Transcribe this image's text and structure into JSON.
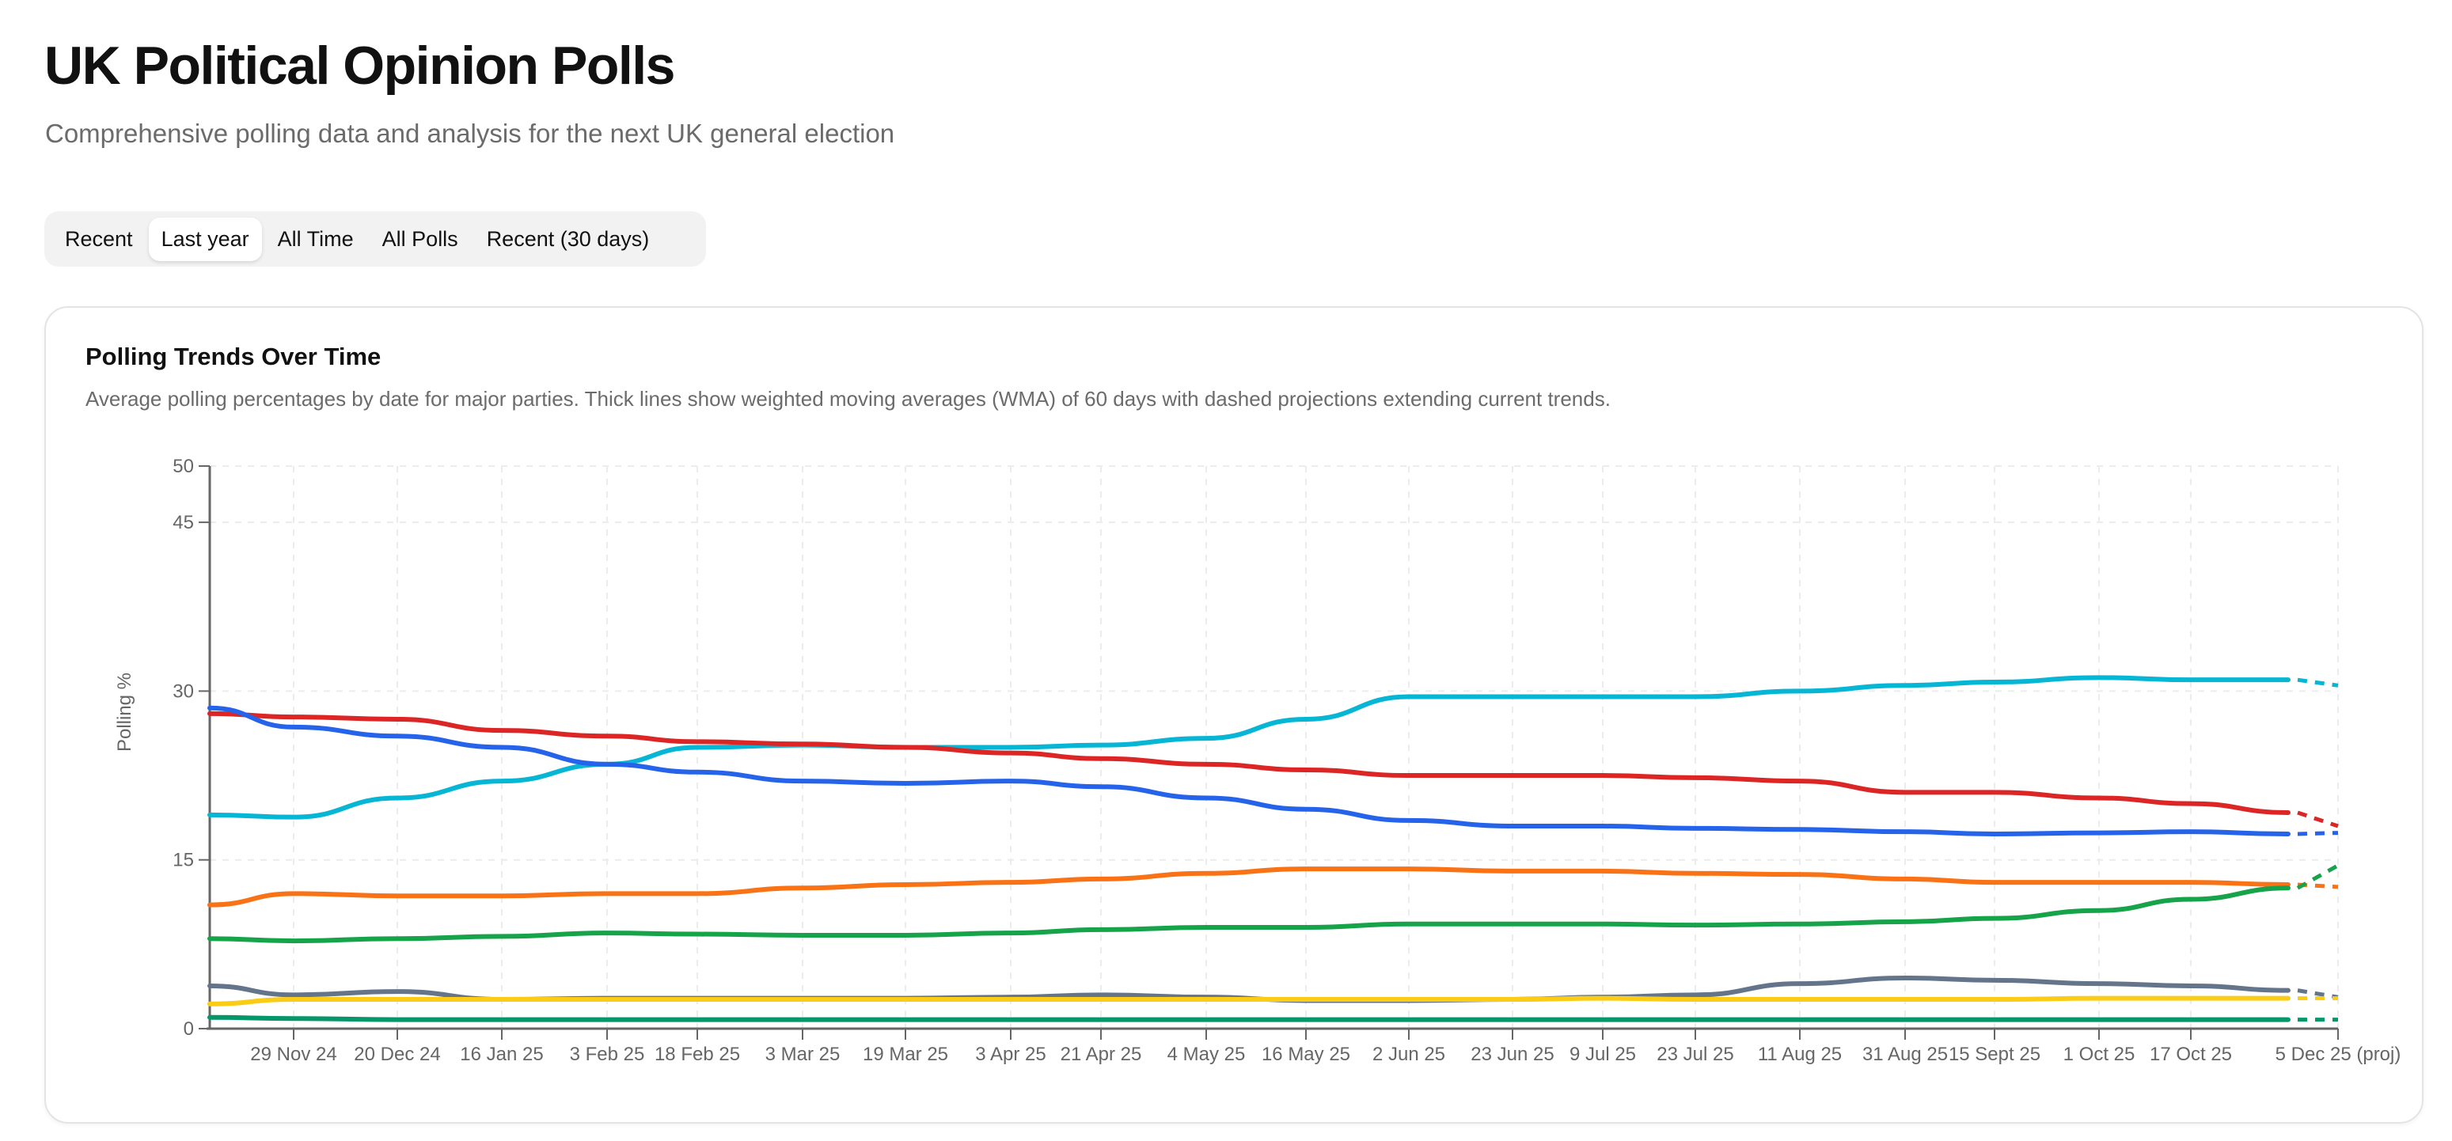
{
  "header": {
    "title": "UK Political Opinion Polls",
    "subtitle": "Comprehensive polling data and analysis for the next UK general election"
  },
  "tabs": [
    {
      "label": "Recent",
      "active": false
    },
    {
      "label": "Last year",
      "active": true
    },
    {
      "label": "All Time",
      "active": false
    },
    {
      "label": "All Polls",
      "active": false
    },
    {
      "label": "Recent (30 days)",
      "active": false
    }
  ],
  "card": {
    "title": "Polling Trends Over Time",
    "description": "Average polling percentages by date for major parties. Thick lines show weighted moving averages (WMA) of 60 days with dashed projections extending current trends."
  },
  "chart_data": {
    "type": "line",
    "title": "Polling Trends Over Time",
    "xlabel": "",
    "ylabel": "Polling %",
    "ylim": [
      0,
      50
    ],
    "yticks": [
      0,
      15,
      30,
      45,
      50
    ],
    "grid": true,
    "x": [
      "",
      "29 Nov 24",
      "20 Dec 24",
      "16 Jan 25",
      "3 Feb 25",
      "18 Feb 25",
      "3 Mar 25",
      "19 Mar 25",
      "3 Apr 25",
      "21 Apr 25",
      "4 May 25",
      "16 May 25",
      "2 Jun 25",
      "23 Jun 25",
      "9 Jul 25",
      "23 Jul 25",
      "11 Aug 25",
      "31 Aug 25",
      "15 Sept 25",
      "1 Oct 25",
      "17 Oct 25",
      "",
      "5 Dec 25 (proj)"
    ],
    "projection_index": 21,
    "series": [
      {
        "color": "#06b6d4",
        "values": [
          19,
          18.8,
          20.5,
          22,
          23.5,
          25,
          25.2,
          25,
          25,
          25.2,
          25.8,
          27.5,
          29.5,
          29.5,
          29.5,
          29.5,
          30,
          30.5,
          30.8,
          31.2,
          31,
          31,
          30.5
        ]
      },
      {
        "color": "#dc2626",
        "values": [
          28,
          27.7,
          27.5,
          26.5,
          26,
          25.5,
          25.3,
          25,
          24.5,
          24,
          23.5,
          23,
          22.5,
          22.5,
          22.5,
          22.3,
          22,
          21,
          21,
          20.5,
          20,
          19.2,
          18
        ]
      },
      {
        "color": "#2563eb",
        "values": [
          28.5,
          26.8,
          26,
          25,
          23.5,
          22.8,
          22,
          21.8,
          22,
          21.5,
          20.5,
          19.5,
          18.5,
          18,
          18,
          17.8,
          17.7,
          17.5,
          17.3,
          17.4,
          17.5,
          17.3,
          17.4
        ]
      },
      {
        "color": "#f97316",
        "values": [
          11,
          12,
          11.8,
          11.8,
          12,
          12,
          12.5,
          12.8,
          13,
          13.3,
          13.8,
          14.2,
          14.2,
          14,
          14,
          13.8,
          13.7,
          13.3,
          13,
          13,
          13,
          12.8,
          12.6
        ]
      },
      {
        "color": "#16a34a",
        "values": [
          8,
          7.8,
          8,
          8.2,
          8.5,
          8.4,
          8.3,
          8.3,
          8.5,
          8.8,
          9,
          9,
          9.3,
          9.3,
          9.3,
          9.2,
          9.3,
          9.5,
          9.8,
          10.5,
          11.5,
          12.5,
          14.5
        ]
      },
      {
        "color": "#64748b",
        "values": [
          3.8,
          3,
          3.3,
          2.6,
          2.7,
          2.7,
          2.7,
          2.7,
          2.8,
          3,
          2.8,
          2.5,
          2.5,
          2.6,
          2.8,
          3,
          4,
          4.5,
          4.3,
          4,
          3.8,
          3.4,
          2.8
        ]
      },
      {
        "color": "#facc15",
        "values": [
          2.2,
          2.6,
          2.6,
          2.6,
          2.6,
          2.6,
          2.6,
          2.6,
          2.6,
          2.6,
          2.6,
          2.6,
          2.6,
          2.6,
          2.7,
          2.6,
          2.6,
          2.6,
          2.6,
          2.7,
          2.7,
          2.7,
          2.7
        ]
      },
      {
        "color": "#059669",
        "values": [
          1,
          0.9,
          0.8,
          0.8,
          0.8,
          0.8,
          0.8,
          0.8,
          0.8,
          0.8,
          0.8,
          0.8,
          0.8,
          0.8,
          0.8,
          0.8,
          0.8,
          0.8,
          0.8,
          0.8,
          0.8,
          0.8,
          0.8
        ]
      }
    ]
  }
}
